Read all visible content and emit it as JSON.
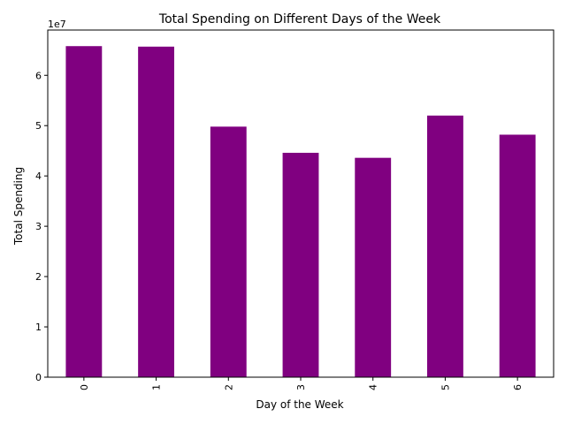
{
  "chart_data": {
    "type": "bar",
    "title": "Total Spending on Different Days of the Week",
    "xlabel": "Day of the Week",
    "ylabel": "Total Spending",
    "y_offset_text": "1e7",
    "categories": [
      "0",
      "1",
      "2",
      "3",
      "4",
      "5",
      "6"
    ],
    "values": [
      65800000,
      65700000,
      49800000,
      44600000,
      43600000,
      52000000,
      48200000
    ],
    "ylim": [
      0,
      69000000
    ],
    "yticks": [
      0,
      10000000,
      20000000,
      30000000,
      40000000,
      50000000,
      60000000
    ],
    "ytick_labels": [
      "0",
      "1",
      "2",
      "3",
      "4",
      "5",
      "6"
    ],
    "bar_color": "#800080",
    "grid": false,
    "legend": false
  }
}
